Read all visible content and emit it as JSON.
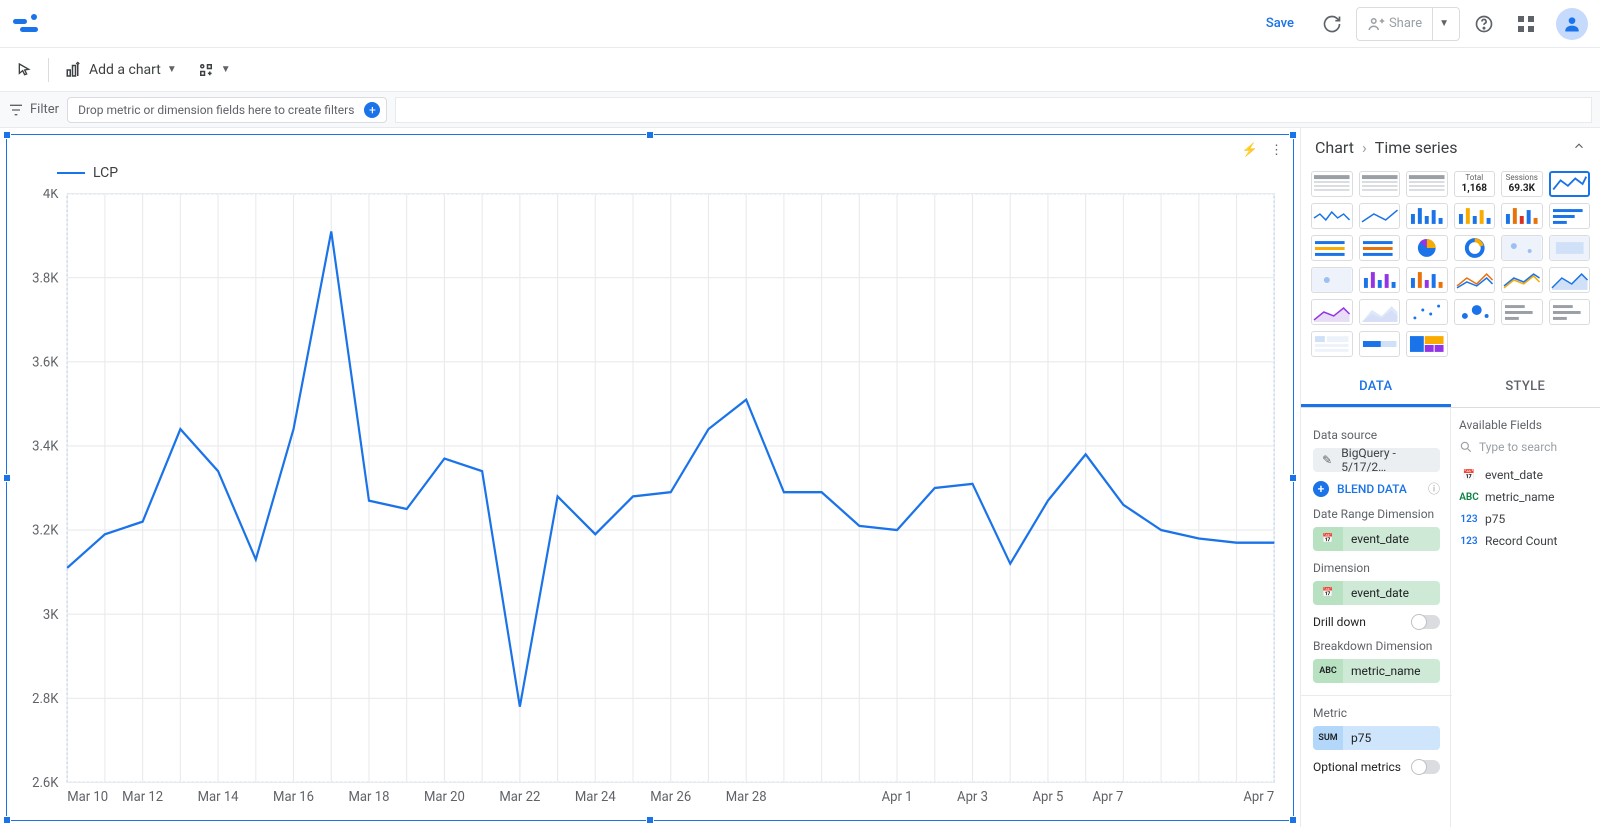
{
  "appbar": {
    "save": "Save",
    "share": "Share"
  },
  "toolbar": {
    "add_chart": "Add a chart"
  },
  "filter": {
    "label": "Filter",
    "placeholder": "Drop metric or dimension fields here to create filters"
  },
  "crumb": {
    "root": "Chart",
    "leaf": "Time series"
  },
  "gallery_stats": {
    "total_label": "Total",
    "total_value": "1,168",
    "sessions_label": "Sessions",
    "sessions_value": "69.3K"
  },
  "tabs": {
    "data": "DATA",
    "style": "STYLE"
  },
  "panel": {
    "data_source": "Data source",
    "ds_value": "BigQuery - 5/17/2…",
    "blend": "BLEND DATA",
    "date_range_dim": "Date Range Dimension",
    "dimension": "Dimension",
    "drill_down": "Drill down",
    "breakdown_dim": "Breakdown Dimension",
    "metric": "Metric",
    "optional_metrics": "Optional metrics",
    "chip_event_date": "event_date",
    "chip_metric_name": "metric_name",
    "chip_p75": "p75",
    "tag_sum": "SUM",
    "tag_abc": "ABC",
    "tag_cal": "📅"
  },
  "available": {
    "title": "Available Fields",
    "search_placeholder": "Type to search",
    "f1": "event_date",
    "f2": "metric_name",
    "f3": "p75",
    "f4": "Record Count"
  },
  "chart": {
    "type": "line",
    "legend": "LCP",
    "line_color": "#1a73e8",
    "grid_color": "#e8eaed",
    "border_color": "#1a73e8",
    "background": "#ffffff",
    "y_label_color": "#5f6368",
    "x_label_color": "#5f6368",
    "ylim": [
      2600,
      4000
    ],
    "yticks": [
      2600,
      2800,
      3000,
      3200,
      3400,
      3600,
      3800,
      4000
    ],
    "ytick_labels": [
      "2.6K",
      "2.8K",
      "3K",
      "3.2K",
      "3.4K",
      "3.6K",
      "3.8K",
      "4K"
    ],
    "x_labels": [
      "Mar 10",
      "Mar 12",
      "Mar 14",
      "Mar 16",
      "Mar 18",
      "Mar 20",
      "Mar 22",
      "Mar 24",
      "Mar 26",
      "Mar 28",
      "",
      "Apr 1",
      "Apr 3",
      "Apr 5",
      "Apr 7"
    ],
    "values": [
      3110,
      3190,
      3220,
      3440,
      3340,
      3130,
      3440,
      3910,
      3270,
      3250,
      3370,
      3340,
      2780,
      3280,
      3190,
      3280,
      3290,
      3440,
      3510,
      3290,
      3290,
      3210,
      3200,
      3300,
      3310,
      3120,
      3270,
      3380,
      3260,
      3200,
      3180,
      3170,
      3170
    ]
  }
}
